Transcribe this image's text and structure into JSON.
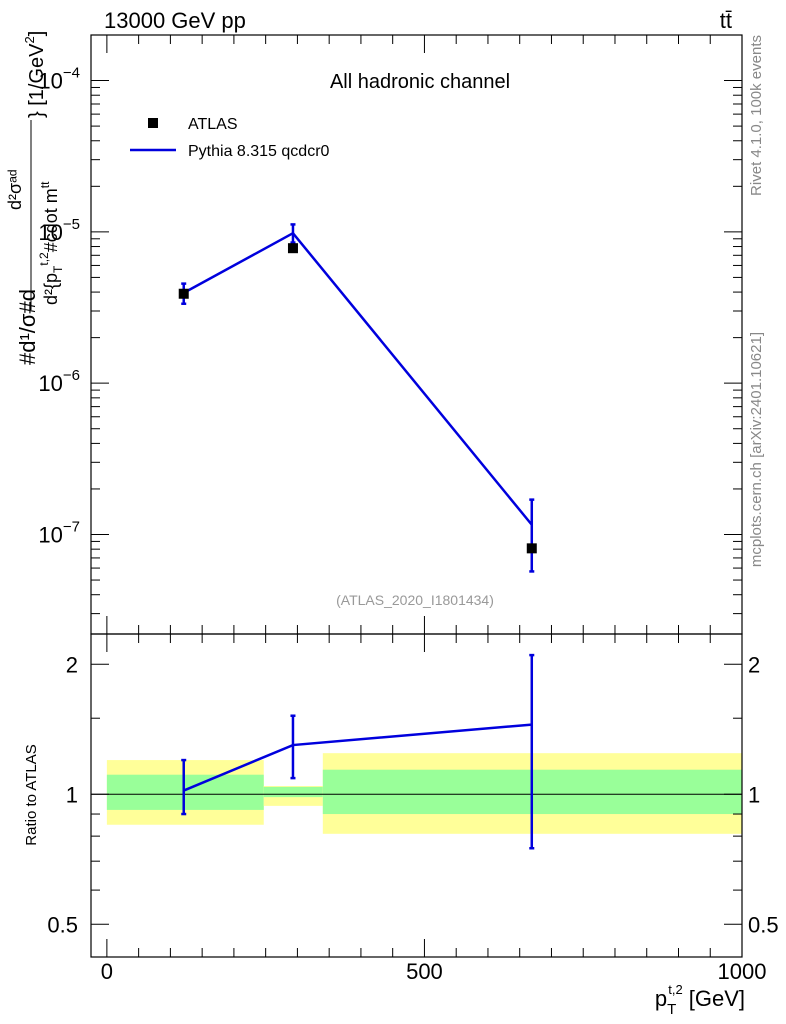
{
  "header": {
    "left": "13000 GeV pp",
    "right": "tt̄"
  },
  "side_labels": {
    "rivet": "Rivet 4.1.0,  100k events",
    "mcplots": "mcplots.cern.ch [arXiv:2401.10621]"
  },
  "chart_data": [
    {
      "type": "line",
      "title": "All hadronic channel",
      "watermark": "(ATLAS_2020_I1801434)",
      "ylabel_parts": [
        "#d¹/σ#d",
        "d²σᵃᵈ",
        "d²{p",
        "T",
        "t,2",
        "#cdot m",
        "tt",
        "} [1/GeV",
        "2",
        "]"
      ],
      "xlabel": "",
      "xlim": [
        -25,
        1000
      ],
      "ylim": [
        2.2e-08,
        0.0002
      ],
      "yscale": "log",
      "y_ticks": [
        {
          "value": 1e-07,
          "mant": "10",
          "exp": "−7"
        },
        {
          "value": 1e-06,
          "mant": "10",
          "exp": "−6"
        },
        {
          "value": 1e-05,
          "mant": "10",
          "exp": "−5"
        },
        {
          "value": 0.0001,
          "mant": "10",
          "exp": "−4"
        }
      ],
      "legend": [
        {
          "name": "ATLAS",
          "marker": "square",
          "color": "#000000"
        },
        {
          "name": "Pythia 8.315 qcdcr0",
          "marker": "line",
          "color": "#0000dd"
        }
      ],
      "series": [
        {
          "name": "ATLAS",
          "x": [
            121,
            293,
            669
          ],
          "y": [
            3.9e-06,
            7.8e-06,
            8.1e-08
          ]
        },
        {
          "name": "Pythia 8.315 qcdcr0",
          "x": [
            121,
            293,
            669
          ],
          "y": [
            3.95e-06,
            9.8e-06,
            1.16e-07
          ],
          "err_low": [
            3.35e-06,
            8.5e-06,
            5.7e-08
          ],
          "err_high": [
            4.55e-06,
            1.12e-05,
            1.7e-07
          ]
        }
      ]
    },
    {
      "type": "line",
      "ylabel": "Ratio to ATLAS",
      "xlabel_main": "p",
      "xlabel_sub": "T",
      "xlabel_sup": "t,2",
      "xlabel_unit": "[GeV]",
      "xlim": [
        -25,
        1000
      ],
      "ylim": [
        0.42,
        2.35
      ],
      "yscale": "log",
      "x_ticks": [
        0,
        500,
        1000
      ],
      "y_ticks": [
        0.5,
        1,
        2
      ],
      "reference": 1,
      "bands": [
        {
          "x0": 0,
          "x1": 247,
          "inner": [
            0.92,
            1.11
          ],
          "outer": [
            0.85,
            1.2
          ]
        },
        {
          "x0": 247,
          "x1": 340,
          "inner": [
            0.985,
            1.04
          ],
          "outer": [
            0.94,
            1.045
          ]
        },
        {
          "x0": 340,
          "x1": 1000,
          "inner": [
            0.9,
            1.14
          ],
          "outer": [
            0.81,
            1.245
          ]
        }
      ],
      "series": [
        {
          "name": "Pythia 8.315 qcdcr0",
          "x": [
            121,
            293,
            669
          ],
          "y": [
            1.02,
            1.3,
            1.45
          ],
          "err_low": [
            0.9,
            1.09,
            0.75
          ],
          "err_high": [
            1.2,
            1.52,
            2.1
          ]
        }
      ]
    }
  ],
  "colors": {
    "mc": "#0000dd",
    "data": "#000000",
    "band_inner": "#99ff99",
    "band_outer": "#ffff99",
    "side_text": "#888888"
  }
}
